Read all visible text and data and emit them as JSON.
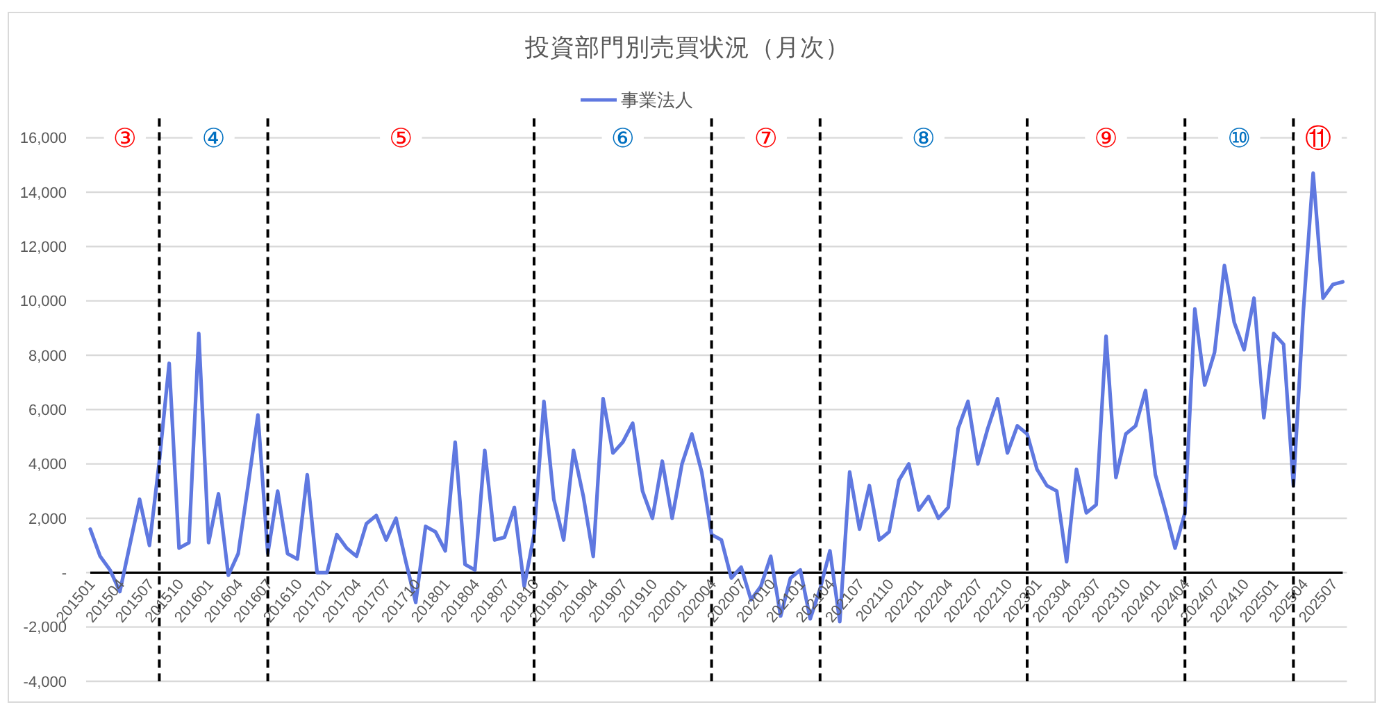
{
  "chart_data": {
    "type": "line",
    "title": "投資部門別売買状況（月次）",
    "x": [
      "2015-01",
      "2015-02",
      "2015-03",
      "2015-04",
      "2015-05",
      "2015-06",
      "2015-07",
      "2015-08",
      "2015-09",
      "2015-10",
      "2015-11",
      "2015-12",
      "2016-01",
      "2016-02",
      "2016-03",
      "2016-04",
      "2016-05",
      "2016-06",
      "2016-07",
      "2016-08",
      "2016-09",
      "2016-10",
      "2016-11",
      "2016-12",
      "2017-01",
      "2017-02",
      "2017-03",
      "2017-04",
      "2017-05",
      "2017-06",
      "2017-07",
      "2017-08",
      "2017-09",
      "2017-10",
      "2017-11",
      "2017-12",
      "2018-01",
      "2018-02",
      "2018-03",
      "2018-04",
      "2018-05",
      "2018-06",
      "2018-07",
      "2018-08",
      "2018-09",
      "2018-10",
      "2018-11",
      "2018-12",
      "2019-01",
      "2019-02",
      "2019-03",
      "2019-04",
      "2019-05",
      "2019-06",
      "2019-07",
      "2019-08",
      "2019-09",
      "2019-10",
      "2019-11",
      "2019-12",
      "2020-01",
      "2020-02",
      "2020-03",
      "2020-04",
      "2020-05",
      "2020-06",
      "2020-07",
      "2020-08",
      "2020-09",
      "2020-10",
      "2020-11",
      "2020-12",
      "2021-01",
      "2021-02",
      "2021-03",
      "2021-04",
      "2021-05",
      "2021-06",
      "2021-07",
      "2021-08",
      "2021-09",
      "2021-10",
      "2021-11",
      "2021-12",
      "2022-01",
      "2022-02",
      "2022-03",
      "2022-04",
      "2022-05",
      "2022-06",
      "2022-07",
      "2022-08",
      "2022-09",
      "2022-10",
      "2022-11",
      "2022-12",
      "2023-01",
      "2023-02",
      "2023-03",
      "2023-04",
      "2023-05",
      "2023-06",
      "2023-07",
      "2023-08",
      "2023-09",
      "2023-10",
      "2023-11",
      "2023-12",
      "2024-01",
      "2024-02",
      "2024-03",
      "2024-04",
      "2024-05",
      "2024-06",
      "2024-07",
      "2024-08",
      "2024-09",
      "2024-10",
      "2024-11",
      "2024-12",
      "2025-01",
      "2025-02",
      "2025-03",
      "2025-04",
      "2025-05",
      "2025-06",
      "2025-07",
      "2025-08"
    ],
    "series": [
      {
        "name": "事業法人",
        "color": "#5f78e0",
        "values": [
          1600,
          600,
          100,
          -700,
          1000,
          2700,
          1000,
          4100,
          7700,
          900,
          1100,
          8800,
          1100,
          2900,
          -100,
          700,
          3200,
          5800,
          700,
          3000,
          700,
          500,
          3600,
          0,
          0,
          1400,
          900,
          600,
          1800,
          2100,
          1200,
          2000,
          400,
          -1100,
          1700,
          1500,
          800,
          4800,
          300,
          100,
          4500,
          1200,
          1300,
          2400,
          -500,
          1400,
          6300,
          2700,
          1200,
          4500,
          2800,
          600,
          6400,
          4400,
          4800,
          5500,
          3000,
          2000,
          4100,
          2000,
          4000,
          5100,
          3700,
          1400,
          1200,
          -200,
          200,
          -1000,
          -500,
          600,
          -1600,
          -200,
          100,
          -1700,
          -600,
          800,
          -1800,
          3700,
          1600,
          3200,
          1200,
          1500,
          3400,
          4000,
          2300,
          2800,
          2000,
          2400,
          5300,
          6300,
          4000,
          5300,
          6400,
          4400,
          5400,
          5100,
          3800,
          3200,
          3000,
          400,
          3800,
          2200,
          2500,
          8700,
          3500,
          5100,
          5400,
          6700,
          3600,
          2300,
          900,
          2200,
          9700,
          6900,
          8100,
          11300,
          9200,
          8200,
          10100,
          5700,
          8800,
          8400,
          3200,
          9600,
          14700,
          10100,
          10600,
          10700
        ]
      }
    ],
    "xlim": [
      "2015-01",
      "2025-08"
    ],
    "xticks": [
      {
        "value": "2015-01",
        "label": "201501"
      },
      {
        "value": "2015-04",
        "label": "201504"
      },
      {
        "value": "2015-07",
        "label": "201507"
      },
      {
        "value": "2015-10",
        "label": "201510"
      },
      {
        "value": "2016-01",
        "label": "201601"
      },
      {
        "value": "2016-04",
        "label": "201604"
      },
      {
        "value": "2016-07",
        "label": "201607"
      },
      {
        "value": "2016-10",
        "label": "201610"
      },
      {
        "value": "2017-01",
        "label": "201701"
      },
      {
        "value": "2017-04",
        "label": "201704"
      },
      {
        "value": "2017-07",
        "label": "201707"
      },
      {
        "value": "2017-10",
        "label": "201710"
      },
      {
        "value": "2018-01",
        "label": "201801"
      },
      {
        "value": "2018-04",
        "label": "201804"
      },
      {
        "value": "2018-07",
        "label": "201807"
      },
      {
        "value": "2018-10",
        "label": "201810"
      },
      {
        "value": "2019-01",
        "label": "201901"
      },
      {
        "value": "2019-04",
        "label": "201904"
      },
      {
        "value": "2019-07",
        "label": "201907"
      },
      {
        "value": "2019-10",
        "label": "201910"
      },
      {
        "value": "2020-01",
        "label": "202001"
      },
      {
        "value": "2020-04",
        "label": "202004"
      },
      {
        "value": "2020-07",
        "label": "202007"
      },
      {
        "value": "2020-10",
        "label": "202010"
      },
      {
        "value": "2021-01",
        "label": "202101"
      },
      {
        "value": "2021-04",
        "label": "202104"
      },
      {
        "value": "2021-07",
        "label": "202107"
      },
      {
        "value": "2021-10",
        "label": "202110"
      },
      {
        "value": "2022-01",
        "label": "202201"
      },
      {
        "value": "2022-04",
        "label": "202204"
      },
      {
        "value": "2022-07",
        "label": "202207"
      },
      {
        "value": "2022-10",
        "label": "202210"
      },
      {
        "value": "2023-01",
        "label": "202301"
      },
      {
        "value": "2023-04",
        "label": "202304"
      },
      {
        "value": "2023-07",
        "label": "202307"
      },
      {
        "value": "2023-10",
        "label": "202310"
      },
      {
        "value": "2024-01",
        "label": "202401"
      },
      {
        "value": "2024-04",
        "label": "202404"
      },
      {
        "value": "2024-07",
        "label": "202407"
      },
      {
        "value": "2024-10",
        "label": "202410"
      },
      {
        "value": "2025-01",
        "label": "202501"
      },
      {
        "value": "2025-04",
        "label": "202504"
      },
      {
        "value": "2025-07",
        "label": "202507"
      }
    ],
    "ylim": [
      -4000,
      16000
    ],
    "yticks": [
      {
        "value": -4000,
        "label": "-4,000"
      },
      {
        "value": -2000,
        "label": "-2,000"
      },
      {
        "value": 0,
        "label": "-"
      },
      {
        "value": 2000,
        "label": "2,000"
      },
      {
        "value": 4000,
        "label": "4,000"
      },
      {
        "value": 6000,
        "label": "6,000"
      },
      {
        "value": 8000,
        "label": "8,000"
      },
      {
        "value": 10000,
        "label": "10,000"
      },
      {
        "value": 12000,
        "label": "12,000"
      },
      {
        "value": 14000,
        "label": "14,000"
      },
      {
        "value": 16000,
        "label": "16,000"
      }
    ],
    "grid": "y",
    "legend": "top",
    "ref_lines": [
      {
        "axis": "x",
        "value": "2015-08",
        "color": "#000000",
        "line_style": "dashed"
      },
      {
        "axis": "x",
        "value": "2016-07",
        "color": "#000000",
        "line_style": "dashed"
      },
      {
        "axis": "x",
        "value": "2018-10",
        "color": "#000000",
        "line_style": "dashed"
      },
      {
        "axis": "x",
        "value": "2020-04",
        "color": "#000000",
        "line_style": "dashed"
      },
      {
        "axis": "x",
        "value": "2021-03",
        "color": "#000000",
        "line_style": "dashed"
      },
      {
        "axis": "x",
        "value": "2022-12",
        "color": "#000000",
        "line_style": "dashed"
      },
      {
        "axis": "x",
        "value": "2024-04",
        "color": "#000000",
        "line_style": "dashed"
      },
      {
        "axis": "x",
        "value": "2025-03",
        "color": "#000000",
        "line_style": "dashed"
      }
    ],
    "annotations": [
      "③",
      "④",
      "⑤",
      "⑥",
      "⑦",
      "⑧",
      "⑨",
      "⑩",
      "⑪"
    ]
  }
}
